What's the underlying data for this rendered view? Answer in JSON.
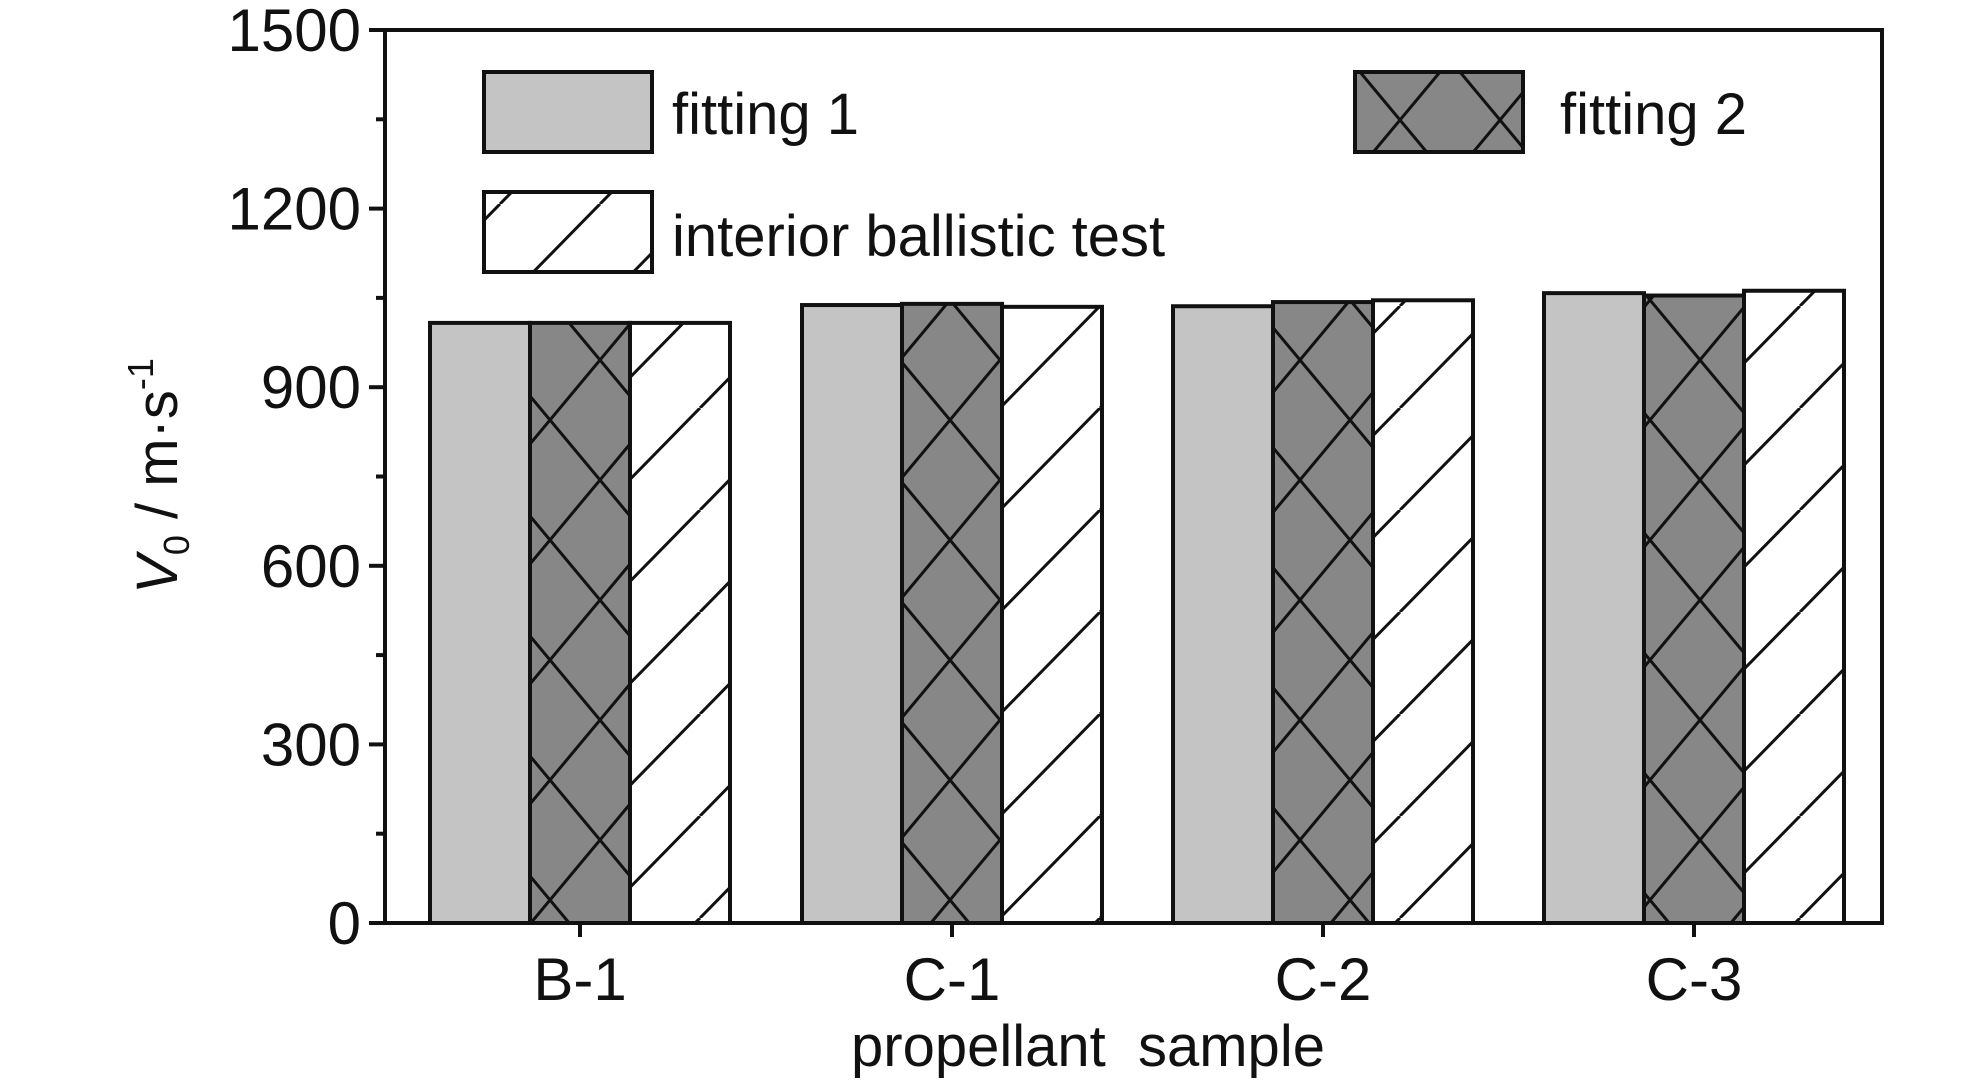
{
  "chart_data": {
    "type": "bar",
    "categories": [
      "B-1",
      "C-1",
      "C-2",
      "C-3"
    ],
    "series": [
      {
        "name": "fitting 1",
        "values": [
          1008,
          1038,
          1036,
          1058
        ],
        "color": "#c4c4c4",
        "pattern": "solid"
      },
      {
        "name": "fitting 2",
        "values": [
          1008,
          1040,
          1043,
          1054
        ],
        "color": "#878787",
        "pattern": "crosshatch"
      },
      {
        "name": "interior ballistic test",
        "values": [
          1008,
          1035,
          1046,
          1062
        ],
        "color": "#ffffff",
        "pattern": "diagonal"
      }
    ],
    "xlabel": "propellant  sample",
    "ylabel": {
      "main": "V",
      "sub": "0",
      "unit": " / m·s",
      "sup": "-1"
    },
    "ylim": [
      0,
      1500
    ],
    "yticks": [
      "0",
      "300",
      "600",
      "900",
      "1200",
      "1500"
    ],
    "grid": false,
    "legend_placement": "top"
  }
}
